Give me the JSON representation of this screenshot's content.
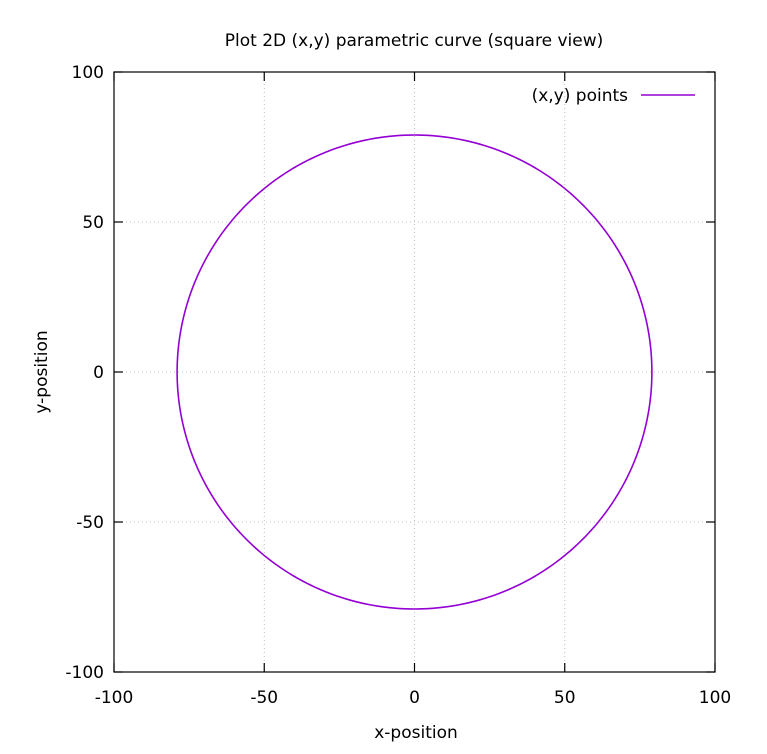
{
  "chart_data": {
    "type": "line",
    "title": "Plot 2D (x,y) parametric curve (square view)",
    "xlabel": "x-position",
    "ylabel": "y-position",
    "xlim": [
      -100,
      100
    ],
    "ylim": [
      -100,
      100
    ],
    "xticks": [
      -100,
      -50,
      0,
      50,
      100
    ],
    "yticks": [
      -100,
      -50,
      0,
      50,
      100
    ],
    "grid": true,
    "legend_position": "top-right",
    "series": [
      {
        "name": "(x,y) points",
        "color": "#9400d3",
        "curve": "circle",
        "center": [
          0,
          0
        ],
        "radius": 79
      }
    ]
  }
}
